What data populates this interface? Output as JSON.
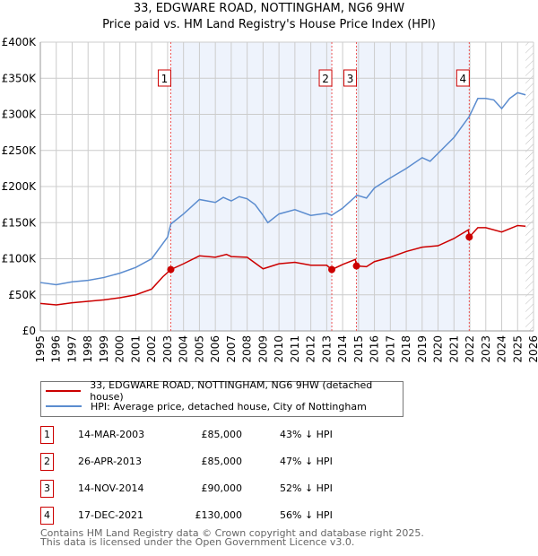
{
  "chart_data": {
    "type": "line",
    "title": "33, EDGWARE ROAD, NOTTINGHAM, NG6 9HW",
    "subtitle": "Price paid vs. HM Land Registry's House Price Index (HPI)",
    "xlim": [
      1995,
      2026
    ],
    "ylim": [
      0,
      400000
    ],
    "x_ticks": [
      "1995",
      "1996",
      "1997",
      "1998",
      "1999",
      "2000",
      "2001",
      "2002",
      "2003",
      "2004",
      "2005",
      "2006",
      "2007",
      "2008",
      "2009",
      "2010",
      "2011",
      "2012",
      "2013",
      "2014",
      "2015",
      "2016",
      "2017",
      "2018",
      "2019",
      "2020",
      "2021",
      "2022",
      "2023",
      "2024",
      "2025",
      "2026"
    ],
    "y_ticks": [
      {
        "v": 0,
        "l": "£0"
      },
      {
        "v": 50000,
        "l": "£50K"
      },
      {
        "v": 100000,
        "l": "£100K"
      },
      {
        "v": 150000,
        "l": "£150K"
      },
      {
        "v": 200000,
        "l": "£200K"
      },
      {
        "v": 250000,
        "l": "£250K"
      },
      {
        "v": 300000,
        "l": "£300K"
      },
      {
        "v": 350000,
        "l": "£350K"
      },
      {
        "v": 400000,
        "l": "£400K"
      }
    ],
    "grid": true,
    "series": [
      {
        "name": "33, EDGWARE ROAD, NOTTINGHAM, NG6 9HW (detached house)",
        "color": "#cc0000",
        "x": [
          1995,
          1996,
          1997,
          1998,
          1999,
          2000,
          2001,
          2002,
          2002.7,
          2003.2,
          2004,
          2005,
          2006,
          2006.7,
          2007,
          2008,
          2009,
          2010,
          2011,
          2012,
          2013,
          2013.32,
          2014,
          2014.8,
          2014.87,
          2015.5,
          2016,
          2017,
          2018,
          2019,
          2020,
          2021,
          2021.9,
          2021.96,
          2022.5,
          2023,
          2024,
          2025,
          2025.5
        ],
        "y": [
          38000,
          36000,
          39000,
          41000,
          43000,
          46000,
          50000,
          58000,
          75000,
          85000,
          93000,
          104000,
          102000,
          106000,
          103000,
          102000,
          86000,
          93000,
          95000,
          91000,
          91000,
          85000,
          92000,
          99000,
          90000,
          89000,
          96000,
          102000,
          110000,
          116000,
          118000,
          128000,
          140000,
          130000,
          143000,
          143000,
          137000,
          146000,
          145000
        ]
      },
      {
        "name": "HPI: Average price, detached house, City of Nottingham",
        "color": "#5b8ccf",
        "x": [
          1995,
          1996,
          1997,
          1998,
          1999,
          2000,
          2001,
          2002,
          2003,
          2003.2,
          2004,
          2005,
          2006,
          2006.5,
          2007,
          2007.5,
          2008,
          2008.5,
          2009,
          2009.3,
          2010,
          2011,
          2012,
          2013,
          2013.3,
          2014,
          2014.9,
          2015.5,
          2016,
          2017,
          2018,
          2019,
          2019.5,
          2020,
          2021,
          2021.96,
          2022.5,
          2023,
          2023.5,
          2024,
          2024.5,
          2025,
          2025.5
        ],
        "y": [
          67000,
          64000,
          68000,
          70000,
          74000,
          80000,
          88000,
          100000,
          130000,
          148000,
          162000,
          182000,
          178000,
          185000,
          180000,
          186000,
          183000,
          175000,
          160000,
          150000,
          162000,
          168000,
          160000,
          163000,
          160000,
          170000,
          188000,
          184000,
          198000,
          212000,
          225000,
          240000,
          235000,
          246000,
          268000,
          297000,
          322000,
          322000,
          320000,
          308000,
          322000,
          330000,
          327000
        ]
      }
    ],
    "sales": [
      {
        "n": "1",
        "x": 2003.2,
        "y": 85000,
        "date": "14-MAR-2003",
        "price": "£85,000",
        "hpi": "43% ↓ HPI"
      },
      {
        "n": "2",
        "x": 2013.32,
        "y": 85000,
        "date": "26-APR-2013",
        "price": "£85,000",
        "hpi": "47% ↓ HPI"
      },
      {
        "n": "3",
        "x": 2014.87,
        "y": 90000,
        "date": "14-NOV-2014",
        "price": "£90,000",
        "hpi": "52% ↓ HPI"
      },
      {
        "n": "4",
        "x": 2021.96,
        "y": 130000,
        "date": "17-DEC-2021",
        "price": "£130,000",
        "hpi": "56% ↓ HPI"
      }
    ],
    "shaded": [
      [
        2003.2,
        2013.32
      ],
      [
        2014.87,
        2021.96
      ]
    ],
    "hatched_from": 2025.5,
    "legend_position": "below"
  },
  "footer": [
    "Contains HM Land Registry data © Crown copyright and database right 2025.",
    "This data is licensed under the Open Government Licence v3.0."
  ]
}
